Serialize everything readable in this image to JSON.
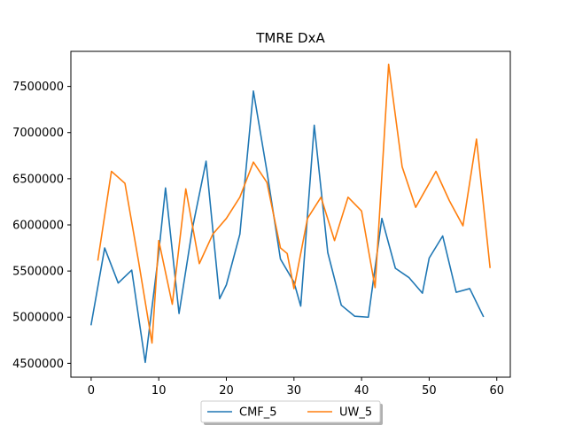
{
  "chart_data": {
    "type": "line",
    "title": "TMRE DxA",
    "xlabel": "",
    "ylabel": "",
    "xlim": [
      -3.0,
      62.0
    ],
    "ylim": [
      4350000,
      7880000
    ],
    "xticks": [
      0,
      10,
      20,
      30,
      40,
      50,
      60
    ],
    "yticks": [
      4500000,
      5000000,
      5500000,
      6000000,
      6500000,
      7000000,
      7500000
    ],
    "grid": false,
    "legend_position": "bottom-center",
    "series": [
      {
        "name": "CMF_5",
        "color": "#1f77b4",
        "x": [
          0,
          2,
          4,
          6,
          8,
          10,
          11,
          13,
          15,
          17,
          19,
          20,
          22,
          24,
          26,
          28,
          30,
          31,
          33,
          35,
          37,
          39,
          41,
          43,
          45,
          47,
          49,
          50,
          52,
          54,
          56,
          58
        ],
        "y": [
          4920000,
          5750000,
          5370000,
          5510000,
          4510000,
          5700000,
          6400000,
          5040000,
          5970000,
          6690000,
          5200000,
          5350000,
          5900000,
          7450000,
          6580000,
          5630000,
          5380000,
          5120000,
          7080000,
          5700000,
          5130000,
          5010000,
          5000000,
          6070000,
          5530000,
          5430000,
          5260000,
          5640000,
          5880000,
          5270000,
          5310000,
          5010000
        ]
      },
      {
        "name": "UW_5",
        "color": "#ff7f0e",
        "x": [
          1,
          3,
          5,
          7,
          9,
          10,
          12,
          14,
          16,
          18,
          20,
          22,
          24,
          26,
          28,
          29,
          30,
          32,
          34,
          36,
          38,
          40,
          42,
          44,
          46,
          48,
          51,
          53,
          55,
          57,
          59
        ],
        "y": [
          5620000,
          6580000,
          6450000,
          5610000,
          4720000,
          5830000,
          5140000,
          6390000,
          5580000,
          5900000,
          6070000,
          6300000,
          6680000,
          6460000,
          5750000,
          5690000,
          5310000,
          6070000,
          6300000,
          5830000,
          6300000,
          6150000,
          5320000,
          7740000,
          6630000,
          6190000,
          6580000,
          6260000,
          5990000,
          6930000,
          5540000
        ]
      }
    ]
  }
}
